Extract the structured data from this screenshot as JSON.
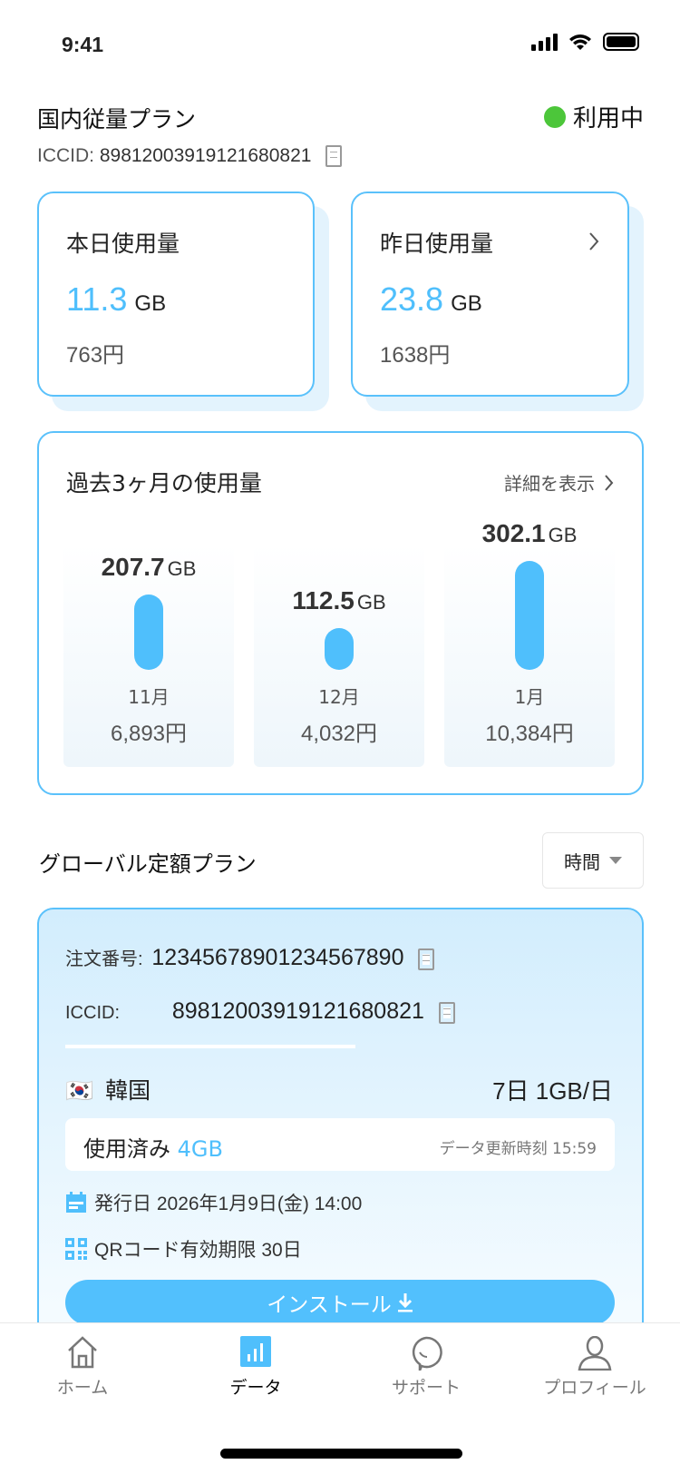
{
  "status_bar": {
    "time": "9:41"
  },
  "domestic": {
    "title": "国内従量プラン",
    "status": "利用中",
    "status_color": "#4cc63a",
    "iccid_label": "ICCID:",
    "iccid": "89812003919121680821",
    "today": {
      "label": "本日使用量",
      "value": "11.3",
      "unit": "GB",
      "yen": "763円"
    },
    "yesterday": {
      "label": "昨日使用量",
      "value": "23.8",
      "unit": "GB",
      "yen": "1638円"
    }
  },
  "history": {
    "title": "過去3ヶ月の使用量",
    "detail_link": "詳細を表示",
    "chart_data": {
      "type": "bar",
      "categories": [
        "11月",
        "12月",
        "1月"
      ],
      "values": [
        207.7,
        112.5,
        302.1
      ],
      "unit": "GB",
      "yen": [
        "6,893円",
        "4,032円",
        "10,384円"
      ]
    }
  },
  "global": {
    "title": "グローバル定額プラン",
    "dropdown": "時間",
    "order_label": "注文番号:",
    "order_no": "12345678901234567890",
    "iccid_label": "ICCID:",
    "iccid": "89812003919121680821",
    "country": "韓国",
    "flag": "🇰🇷",
    "plan": "7日 1GB/日",
    "used_label": "使用済み",
    "used_value": "4GB",
    "update_label": "データ更新時刻",
    "update_time": "15:59",
    "issue": "発行日 2026年1月9日(金) 14:00",
    "qr": "QRコード有効期限 30日",
    "install": "インストール"
  },
  "nav": [
    {
      "label": "ホーム",
      "icon": "home-icon"
    },
    {
      "label": "データ",
      "icon": "chart-icon",
      "active": true
    },
    {
      "label": "サポート",
      "icon": "chat-icon"
    },
    {
      "label": "プロフィール",
      "icon": "user-icon"
    }
  ],
  "colors": {
    "accent": "#4fbffc",
    "active_status": "#4cc63a"
  }
}
